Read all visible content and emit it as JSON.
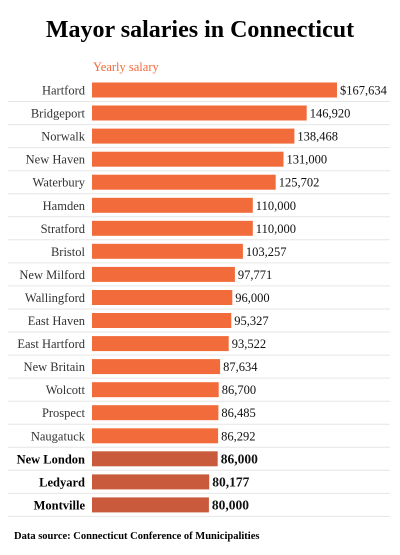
{
  "chart_data": {
    "type": "bar",
    "orientation": "horizontal",
    "title": "Mayor salaries in Connecticut",
    "subtitle": "Yearly salary",
    "categories": [
      "Hartford",
      "Bridgeport",
      "Norwalk",
      "New Haven",
      "Waterbury",
      "Hamden",
      "Stratford",
      "Bristol",
      "New Milford",
      "Wallingford",
      "East Haven",
      "East Hartford",
      "New Britain",
      "Wolcott",
      "Prospect",
      "Naugatuck",
      "New London",
      "Ledyard",
      "Montville"
    ],
    "values": [
      167634,
      146920,
      138468,
      131000,
      125702,
      110000,
      110000,
      103257,
      97771,
      96000,
      95327,
      93522,
      87634,
      86700,
      86485,
      86292,
      86000,
      80177,
      80000
    ],
    "value_labels": [
      "$167,634",
      "146,920",
      "138,468",
      "131,000",
      "125,702",
      "110,000",
      "110,000",
      "103,257",
      "97,771",
      "96,000",
      "95,327",
      "93,522",
      "87,634",
      "86,700",
      "86,485",
      "86,292",
      "86,000",
      "80,177",
      "80,000"
    ],
    "highlighted": [
      false,
      false,
      false,
      false,
      false,
      false,
      false,
      false,
      false,
      false,
      false,
      false,
      false,
      false,
      false,
      false,
      true,
      true,
      true
    ],
    "xlim": [
      0,
      167634
    ],
    "grid": "horizontal row lines",
    "colors": {
      "bar": "#f26b3a",
      "highlight_bar": "#c95a3c",
      "gridline": "#e6e6e6"
    }
  },
  "footer": {
    "source": "Data source: Connecticut Conference of Municipalities"
  }
}
